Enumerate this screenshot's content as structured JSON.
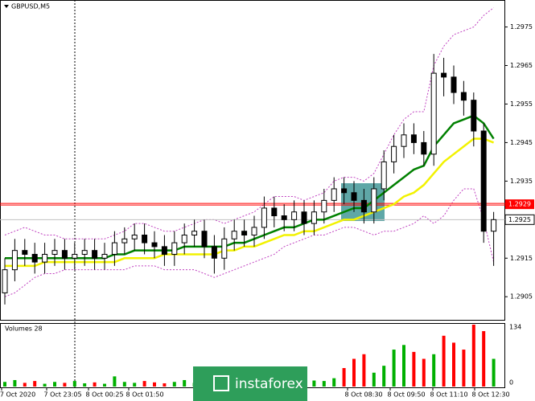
{
  "chart_data": {
    "type": "candlestick",
    "title": "GBPUSD,M5",
    "volume_title": "Volumes 28",
    "ylim": [
      1.2899,
      1.2982
    ],
    "yticks": [
      1.2975,
      1.2965,
      1.2955,
      1.2945,
      1.2935,
      1.2915,
      1.2905
    ],
    "vlim": [
      0,
      134
    ],
    "level": 1.2929,
    "current_price": 1.2925,
    "time_labels": [
      "7 Oct 2020",
      "7 Oct 23:05",
      "8 Oct 00:25",
      "8 Oct 01:50",
      "8 Oct 08:30",
      "8 Oct 09:50",
      "8 Oct 11:10",
      "8 Oct 12:30"
    ],
    "watermark": "instaforex",
    "candle_color": "#000000",
    "ma_fast_color": "#008000",
    "ma_slow_color": "#f2f200",
    "envelope_color": "#c040c0",
    "level_color": "#ff0000",
    "volume_up_color": "#00b000",
    "volume_down_color": "#ff0000",
    "open": [
      1.2906,
      1.2912,
      1.2917,
      1.2916,
      1.2914,
      1.2916,
      1.2917,
      1.2915,
      1.2916,
      1.2917,
      1.2915,
      1.2916,
      1.2919,
      1.292,
      1.2921,
      1.2919,
      1.2918,
      1.2916,
      1.2919,
      1.2921,
      1.2922,
      1.2918,
      1.2915,
      1.292,
      1.2922,
      1.2921,
      1.2923,
      1.2928,
      1.2926,
      1.2925,
      1.2927,
      1.2924,
      1.2927,
      1.293,
      1.2933,
      1.2932,
      1.293,
      1.2927,
      1.2933,
      1.294,
      1.2944,
      1.2947,
      1.2945,
      1.2942,
      1.2963,
      1.2962,
      1.2958,
      1.2956,
      1.2948,
      1.2922
    ],
    "high": [
      1.2915,
      1.292,
      1.292,
      1.2919,
      1.2919,
      1.292,
      1.292,
      1.2919,
      1.292,
      1.292,
      1.2919,
      1.2922,
      1.2923,
      1.2924,
      1.2924,
      1.2922,
      1.2921,
      1.2922,
      1.2924,
      1.2925,
      1.2925,
      1.2921,
      1.2923,
      1.2925,
      1.2925,
      1.2926,
      1.2931,
      1.2931,
      1.2929,
      1.293,
      1.293,
      1.293,
      1.2933,
      1.2936,
      1.2936,
      1.2935,
      1.2933,
      1.2936,
      1.2943,
      1.2947,
      1.295,
      1.295,
      1.2948,
      1.2968,
      1.2967,
      1.2965,
      1.2961,
      1.2958,
      1.295,
      1.2927
    ],
    "low": [
      1.2903,
      1.2909,
      1.2913,
      1.2911,
      1.2911,
      1.2913,
      1.2912,
      1.2912,
      1.2913,
      1.2912,
      1.2912,
      1.2913,
      1.2916,
      1.2917,
      1.2916,
      1.2915,
      1.2913,
      1.2913,
      1.2916,
      1.2918,
      1.2915,
      1.2911,
      1.2912,
      1.2917,
      1.2918,
      1.2918,
      1.292,
      1.2923,
      1.2922,
      1.2922,
      1.2921,
      1.2921,
      1.2924,
      1.2927,
      1.2929,
      1.2927,
      1.2924,
      1.2924,
      1.293,
      1.2937,
      1.2941,
      1.2942,
      1.2939,
      1.2939,
      1.2957,
      1.2955,
      1.2952,
      1.2944,
      1.2919,
      1.2913
    ],
    "close": [
      1.2912,
      1.2917,
      1.2916,
      1.2914,
      1.2916,
      1.2917,
      1.2915,
      1.2916,
      1.2917,
      1.2915,
      1.2916,
      1.2919,
      1.292,
      1.2921,
      1.2919,
      1.2918,
      1.2916,
      1.2919,
      1.2921,
      1.2922,
      1.2918,
      1.2915,
      1.292,
      1.2922,
      1.2921,
      1.2923,
      1.2928,
      1.2926,
      1.2925,
      1.2927,
      1.2924,
      1.2927,
      1.293,
      1.2933,
      1.2932,
      1.293,
      1.2927,
      1.2933,
      1.294,
      1.2944,
      1.2947,
      1.2945,
      1.2942,
      1.2963,
      1.2962,
      1.2958,
      1.2956,
      1.2948,
      1.2922,
      1.2925
    ],
    "volume": [
      10,
      14,
      8,
      12,
      6,
      10,
      8,
      12,
      7,
      9,
      6,
      22,
      10,
      8,
      12,
      9,
      7,
      10,
      14,
      8,
      12,
      9,
      11,
      8,
      10,
      14,
      12,
      9,
      8,
      11,
      10,
      13,
      12,
      18,
      40,
      60,
      70,
      30,
      45,
      80,
      90,
      75,
      60,
      70,
      110,
      95,
      80,
      134,
      120,
      60
    ],
    "ma_fast": [
      1.2915,
      1.2915,
      1.2915,
      1.2915,
      1.2915,
      1.2915,
      1.2915,
      1.2915,
      1.2915,
      1.2915,
      1.2915,
      1.2916,
      1.2916,
      1.2917,
      1.2917,
      1.2917,
      1.2917,
      1.2917,
      1.2918,
      1.2918,
      1.2918,
      1.2918,
      1.2918,
      1.2919,
      1.2919,
      1.292,
      1.2921,
      1.2922,
      1.2923,
      1.2923,
      1.2924,
      1.2925,
      1.2925,
      1.2926,
      1.2927,
      1.2928,
      1.2928,
      1.293,
      1.2932,
      1.2934,
      1.2936,
      1.2938,
      1.2939,
      1.2944,
      1.2947,
      1.295,
      1.2951,
      1.2952,
      1.295,
      1.2946
    ],
    "ma_slow": [
      1.2913,
      1.2913,
      1.2913,
      1.2913,
      1.2914,
      1.2914,
      1.2914,
      1.2914,
      1.2914,
      1.2914,
      1.2914,
      1.2914,
      1.2915,
      1.2915,
      1.2915,
      1.2915,
      1.2916,
      1.2916,
      1.2916,
      1.2916,
      1.2916,
      1.2916,
      1.2917,
      1.2917,
      1.2918,
      1.2918,
      1.2919,
      1.292,
      1.2921,
      1.2921,
      1.2922,
      1.2922,
      1.2923,
      1.2924,
      1.2925,
      1.2925,
      1.2926,
      1.2927,
      1.2928,
      1.2929,
      1.2931,
      1.2932,
      1.2934,
      1.2937,
      1.294,
      1.2942,
      1.2944,
      1.2946,
      1.2946,
      1.2945
    ],
    "envelope_upper": [
      1.2921,
      1.2922,
      1.2923,
      1.2922,
      1.2921,
      1.2921,
      1.292,
      1.292,
      1.292,
      1.292,
      1.292,
      1.2921,
      1.2922,
      1.2924,
      1.2924,
      1.2923,
      1.2922,
      1.2922,
      1.2923,
      1.2924,
      1.2925,
      1.2925,
      1.2924,
      1.2925,
      1.2926,
      1.2927,
      1.2929,
      1.2931,
      1.2931,
      1.2931,
      1.293,
      1.2931,
      1.2932,
      1.2935,
      1.2936,
      1.2936,
      1.2935,
      1.2937,
      1.2942,
      1.2947,
      1.2951,
      1.2953,
      1.2953,
      1.2965,
      1.297,
      1.2973,
      1.2974,
      1.2975,
      1.2978,
      1.298
    ],
    "envelope_lower": [
      1.2905,
      1.2906,
      1.2908,
      1.291,
      1.2911,
      1.2911,
      1.2912,
      1.2912,
      1.2912,
      1.2912,
      1.2912,
      1.2912,
      1.2912,
      1.2913,
      1.2913,
      1.2913,
      1.2912,
      1.2912,
      1.2912,
      1.2912,
      1.2911,
      1.291,
      1.2911,
      1.2912,
      1.2913,
      1.2914,
      1.2915,
      1.2916,
      1.2918,
      1.2919,
      1.292,
      1.2921,
      1.2921,
      1.2922,
      1.2923,
      1.2923,
      1.2922,
      1.2921,
      1.2922,
      1.2922,
      1.2923,
      1.2924,
      1.2926,
      1.2924,
      1.2926,
      1.293,
      1.2933,
      1.2933,
      1.2925,
      1.2914
    ]
  }
}
